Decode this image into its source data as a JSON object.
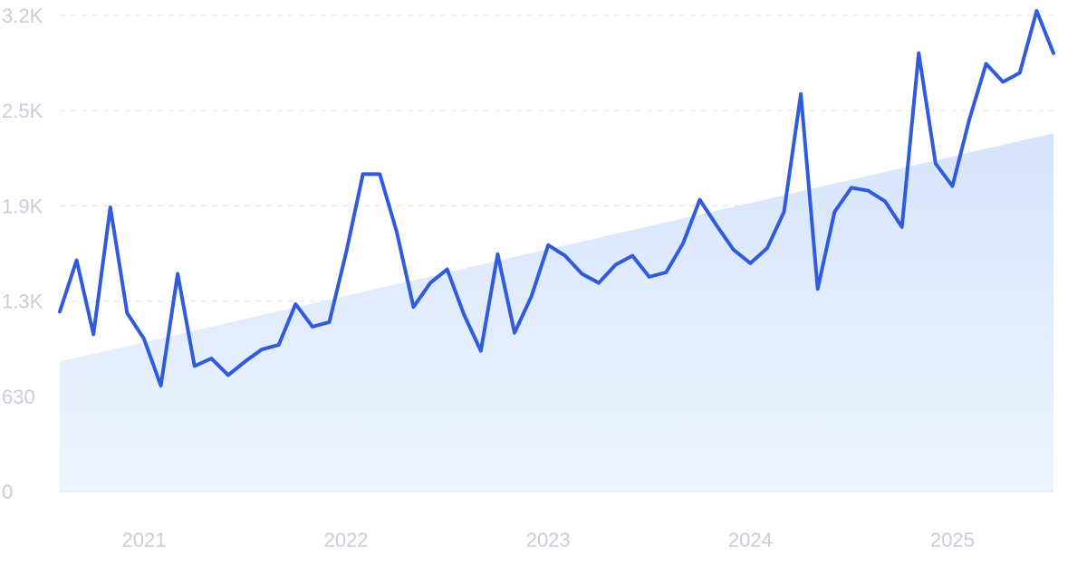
{
  "colors": {
    "line": "#2f5bdc",
    "trend_fill_top": "#d6e4fb",
    "trend_fill_bottom": "#eef4fe",
    "grid": "#e3e6ee",
    "tick_text": "#c9cdd8"
  },
  "chart_data": {
    "type": "line",
    "title": "",
    "xlabel": "",
    "ylabel": "",
    "grid": true,
    "legend": "none",
    "ylim": [
      0,
      3150
    ],
    "y_ticks": [
      {
        "value": 0,
        "label": "0"
      },
      {
        "value": 630,
        "label": "630"
      },
      {
        "value": 1260,
        "label": "1.3K"
      },
      {
        "value": 1890,
        "label": "1.9K"
      },
      {
        "value": 2520,
        "label": "2.5K"
      },
      {
        "value": 3150,
        "label": "3.2K"
      }
    ],
    "x_ticks": [
      {
        "value": "2021-01",
        "label": "2021"
      },
      {
        "value": "2022-01",
        "label": "2022"
      },
      {
        "value": "2023-01",
        "label": "2023"
      },
      {
        "value": "2024-01",
        "label": "2024"
      },
      {
        "value": "2025-01",
        "label": "2025"
      }
    ],
    "x": [
      "2020-08",
      "2020-09",
      "2020-10",
      "2020-11",
      "2020-12",
      "2021-01",
      "2021-02",
      "2021-03",
      "2021-04",
      "2021-05",
      "2021-06",
      "2021-07",
      "2021-08",
      "2021-09",
      "2021-10",
      "2021-11",
      "2021-12",
      "2022-01",
      "2022-02",
      "2022-03",
      "2022-04",
      "2022-05",
      "2022-06",
      "2022-07",
      "2022-08",
      "2022-09",
      "2022-10",
      "2022-11",
      "2022-12",
      "2023-01",
      "2023-02",
      "2023-03",
      "2023-04",
      "2023-05",
      "2023-06",
      "2023-07",
      "2023-08",
      "2023-09",
      "2023-10",
      "2023-11",
      "2023-12",
      "2024-01",
      "2024-02",
      "2024-03",
      "2024-04",
      "2024-05",
      "2024-06",
      "2024-07",
      "2024-08",
      "2024-09",
      "2024-10",
      "2024-11",
      "2024-12",
      "2025-01",
      "2025-02",
      "2025-03",
      "2025-04",
      "2025-05",
      "2025-06",
      "2025-07"
    ],
    "series": [
      {
        "values": [
          1190,
          1530,
          1040,
          1880,
          1180,
          1010,
          700,
          1440,
          830,
          880,
          770,
          860,
          940,
          970,
          1240,
          1090,
          1120,
          1580,
          2100,
          2100,
          1720,
          1220,
          1380,
          1470,
          1170,
          930,
          1570,
          1050,
          1290,
          1630,
          1560,
          1440,
          1380,
          1500,
          1560,
          1420,
          1450,
          1640,
          1930,
          1760,
          1600,
          1510,
          1610,
          1850,
          2630,
          1340,
          1850,
          2010,
          1990,
          1920,
          1750,
          2900,
          2170,
          2020,
          2460,
          2830,
          2710,
          2770,
          3180,
          2900
        ]
      }
    ],
    "trend_area": {
      "start": {
        "x": "2020-08",
        "y": 860
      },
      "end": {
        "x": "2025-07",
        "y": 2370
      }
    }
  }
}
